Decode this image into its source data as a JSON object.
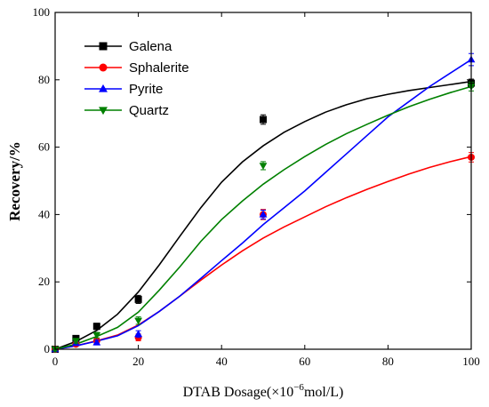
{
  "chart_data": {
    "type": "scatter",
    "xlabel": "DTAB Dosage(×10",
    "xlabel_sup": "−6",
    "xlabel_tail": "mol/L)",
    "ylabel": "Recovery/%",
    "xlim": [
      0,
      100
    ],
    "ylim": [
      0,
      100
    ],
    "xticks": [
      0,
      20,
      40,
      60,
      80,
      100
    ],
    "yticks": [
      0,
      20,
      40,
      60,
      80,
      100
    ],
    "grid": false,
    "legend_position": "top-left",
    "series": [
      {
        "name": "Galena",
        "color": "#000000",
        "marker": "square",
        "x": [
          0,
          5,
          10,
          20,
          50,
          100
        ],
        "y": [
          0,
          3.2,
          6.8,
          14.8,
          68.2,
          79
        ],
        "err": [
          0.6,
          0.8,
          0.9,
          1.2,
          1.4,
          1.2
        ],
        "fit_x": [
          0,
          5,
          10,
          15,
          20,
          25,
          30,
          35,
          40,
          45,
          50,
          55,
          60,
          65,
          70,
          75,
          80,
          85,
          90,
          95,
          100
        ],
        "fit_y": [
          0,
          2.3,
          5.6,
          10.4,
          17,
          25,
          33.6,
          42,
          49.6,
          55.6,
          60.4,
          64.4,
          67.6,
          70.4,
          72.6,
          74.4,
          75.7,
          76.8,
          77.7,
          78.6,
          79.5
        ]
      },
      {
        "name": "Sphalerite",
        "color": "#ff0000",
        "marker": "circle",
        "x": [
          0,
          5,
          10,
          20,
          50,
          100
        ],
        "y": [
          0,
          1.5,
          2.5,
          3.5,
          40,
          57
        ],
        "err": [
          0.5,
          0.6,
          0.8,
          1.0,
          1.5,
          1.4
        ],
        "fit_x": [
          0,
          5,
          10,
          15,
          20,
          25,
          30,
          35,
          40,
          45,
          50,
          55,
          60,
          65,
          70,
          75,
          80,
          85,
          90,
          95,
          100
        ],
        "fit_y": [
          0,
          1.0,
          2.5,
          4.2,
          7.2,
          11.2,
          15.8,
          20.5,
          25,
          29.2,
          33,
          36.3,
          39.3,
          42.3,
          45,
          47.5,
          49.8,
          52,
          54,
          55.7,
          57.2
        ]
      },
      {
        "name": "Pyrite",
        "color": "#0000ff",
        "marker": "triangle-up",
        "x": [
          0,
          5,
          10,
          20,
          50,
          100
        ],
        "y": [
          0,
          1.8,
          2.0,
          4.5,
          40,
          86
        ],
        "err": [
          0.5,
          0.6,
          0.7,
          1.0,
          1.3,
          1.8
        ],
        "fit_x": [
          0,
          5,
          10,
          15,
          20,
          25,
          30,
          35,
          40,
          45,
          50,
          55,
          60,
          65,
          70,
          75,
          80,
          85,
          90,
          95,
          100
        ],
        "fit_y": [
          0,
          1.0,
          2.4,
          4.0,
          7.0,
          11.2,
          15.8,
          21,
          26.3,
          31.5,
          37,
          42,
          47,
          52.5,
          58,
          63.5,
          69,
          73.5,
          78,
          82,
          86
        ]
      },
      {
        "name": "Quartz",
        "color": "#008000",
        "marker": "triangle-down",
        "x": [
          0,
          5,
          10,
          20,
          50,
          100
        ],
        "y": [
          0,
          2.5,
          4.2,
          8.5,
          54.5,
          78
        ],
        "err": [
          0.5,
          0.7,
          0.8,
          1.1,
          1.2,
          1.3
        ],
        "fit_x": [
          0,
          5,
          10,
          15,
          20,
          25,
          30,
          35,
          40,
          45,
          50,
          55,
          60,
          65,
          70,
          75,
          80,
          85,
          90,
          95,
          100
        ],
        "fit_y": [
          0,
          1.5,
          3.8,
          6.5,
          11,
          17.5,
          24.5,
          32,
          38.5,
          44,
          49,
          53.3,
          57.2,
          60.8,
          64,
          66.8,
          69.5,
          72,
          74.2,
          76.2,
          78
        ]
      }
    ]
  }
}
